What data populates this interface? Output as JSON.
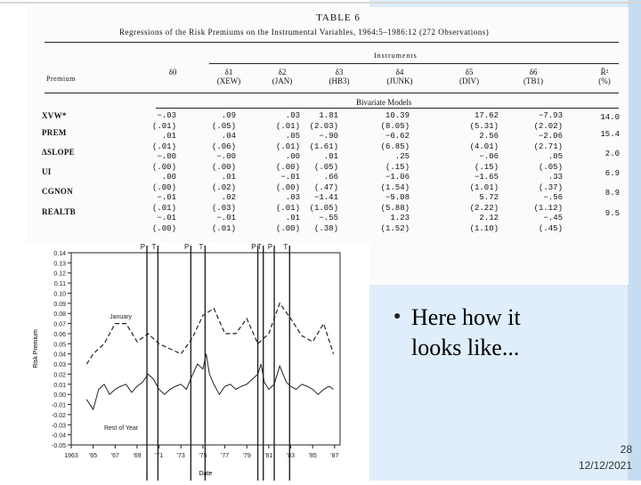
{
  "slide": {
    "bullet_text_line1": "Here how it",
    "bullet_text_line2": "looks like...",
    "bullet_icon": "filled-circle",
    "page_number": "28",
    "date": "12/12/2021"
  },
  "table": {
    "title": "TABLE 6",
    "subtitle": "Regressions of the Risk Premiums on the Instrumental Variables, 1964:5–1986:12 (272 Observations)",
    "group_header": "Instruments",
    "premium_header": "Premium",
    "section_header": "Bivariate Models",
    "columns": [
      {
        "symbol": "δ0",
        "name": ""
      },
      {
        "symbol": "δ1",
        "name": "(XEW)"
      },
      {
        "symbol": "δ2",
        "name": "(JAN)"
      },
      {
        "symbol": "δ3",
        "name": "(HB3)"
      },
      {
        "symbol": "δ4",
        "name": "(JUNK)"
      },
      {
        "symbol": "δ5",
        "name": "(DIV)"
      },
      {
        "symbol": "δ6",
        "name": "(TB1)"
      },
      {
        "symbol": "R̄²",
        "name": "(%)"
      }
    ],
    "row_labels": [
      "XVW*",
      "PREM",
      "ΔSLOPE",
      "UI",
      "CGNON",
      "REALTB"
    ],
    "col_values": [
      [
        "−.03",
        "(.01)",
        ".01",
        "(.01)",
        "−.00",
        "(.00)",
        ".00",
        "(.00)",
        "−.01",
        "(.01)",
        "−.01",
        "(.00)"
      ],
      [
        ".09",
        "(.05)",
        ".04",
        "(.06)",
        "−.00",
        "(.00)",
        ".01",
        "(.02)",
        ".02",
        "(.03)",
        "−.01",
        "(.01)"
      ],
      [
        ".03",
        "(.01)",
        ".05",
        "(.01)",
        ".00",
        "(.00)",
        "−.01",
        "(.00)",
        ".03",
        "(.01)",
        ".01",
        "(.00)"
      ],
      [
        "1.81",
        "(2.03)",
        "−.90",
        "(1.61)",
        ".01",
        "(.05)",
        ".66",
        "(.47)",
        "−1.41",
        "(1.05)",
        "−.55",
        "(.38)"
      ],
      [
        "10.39",
        "(8.05)",
        "−6.62",
        "(6.85)",
        ".25",
        "(.15)",
        "−1.06",
        "(1.54)",
        "−5.08",
        "(5.88)",
        "1.23",
        "(1.52)"
      ],
      [
        "17.62",
        "(5.31)",
        "2.56",
        "(4.01)",
        "−.06",
        "(.15)",
        "−1.65",
        "(1.01)",
        "5.72",
        "(2.22)",
        "2.12",
        "(1.10)"
      ],
      [
        "−7.93",
        "(2.02)",
        "−2.06",
        "(2.71)",
        ".05",
        "(.05)",
        ".33",
        "(.37)",
        "−.56",
        "(1.12)",
        "−.45",
        "(.45)"
      ],
      [
        "14.0",
        "15.4",
        "2.0",
        "6.9",
        "8.9",
        "9.5"
      ]
    ]
  },
  "chart_data": {
    "type": "line",
    "title": "",
    "ylabel": "Risk Premium",
    "xlabel": "Date",
    "ylim": [
      -0.05,
      0.14
    ],
    "xlim": [
      1963,
      1987.5
    ],
    "y_ticks": [
      "0.14",
      "0.13",
      "0.12",
      "0.11",
      "0.10",
      "0.09",
      "0.08",
      "0.07",
      "0.06",
      "0.05",
      "0.04",
      "0.03",
      "0.02",
      "0.01",
      "0.00",
      "-0.01",
      "-0.02",
      "-0.03",
      "-0.04",
      "-0.05"
    ],
    "x_ticks": [
      {
        "label": "1963",
        "x": 1963
      },
      {
        "label": "'65",
        "x": 1965
      },
      {
        "label": "'67",
        "x": 1967
      },
      {
        "label": "'69",
        "x": 1969
      },
      {
        "label": "'71",
        "x": 1971
      },
      {
        "label": "'73",
        "x": 1973
      },
      {
        "label": "'75",
        "x": 1975
      },
      {
        "label": "'77",
        "x": 1977
      },
      {
        "label": "'79",
        "x": 1979
      },
      {
        "label": "'81",
        "x": 1981
      },
      {
        "label": "'83",
        "x": 1983
      },
      {
        "label": "'85",
        "x": 1985
      },
      {
        "label": "'87",
        "x": 1987
      }
    ],
    "cycle_markers": [
      {
        "label": "P",
        "x": 1969.9
      },
      {
        "label": "T",
        "x": 1970.9
      },
      {
        "label": "P",
        "x": 1973.9
      },
      {
        "label": "T",
        "x": 1975.2
      },
      {
        "label": "P",
        "x": 1980.0
      },
      {
        "label": "T",
        "x": 1980.5
      },
      {
        "label": "P",
        "x": 1981.5
      },
      {
        "label": "T",
        "x": 1982.9
      }
    ],
    "annotations": [
      {
        "text": "January",
        "x": 1966.5,
        "y": 0.075
      },
      {
        "text": "Rest of Year",
        "x": 1966.0,
        "y": -0.035
      }
    ],
    "series": [
      {
        "name": "January",
        "style": "dashed",
        "x": [
          1964.4,
          1965.0,
          1966.0,
          1967.0,
          1968.0,
          1969.0,
          1970.0,
          1971.0,
          1972.0,
          1973.0,
          1974.0,
          1975.0,
          1976.0,
          1977.0,
          1978.0,
          1979.0,
          1980.0,
          1981.0,
          1982.0,
          1983.0,
          1984.0,
          1985.0,
          1986.0,
          1986.9
        ],
        "y": [
          0.03,
          0.04,
          0.05,
          0.07,
          0.07,
          0.052,
          0.06,
          0.05,
          0.045,
          0.04,
          0.055,
          0.078,
          0.085,
          0.06,
          0.06,
          0.075,
          0.05,
          0.06,
          0.09,
          0.075,
          0.058,
          0.052,
          0.07,
          0.04
        ]
      },
      {
        "name": "Rest of Year",
        "style": "solid",
        "x": [
          1964.4,
          1965.0,
          1965.5,
          1966.0,
          1966.5,
          1967.0,
          1967.5,
          1968.0,
          1968.5,
          1969.0,
          1969.5,
          1970.0,
          1970.5,
          1971.0,
          1971.5,
          1972.0,
          1972.5,
          1973.0,
          1973.5,
          1974.0,
          1974.5,
          1975.0,
          1975.3,
          1975.6,
          1976.0,
          1976.5,
          1977.0,
          1977.5,
          1978.0,
          1978.5,
          1979.0,
          1979.5,
          1980.0,
          1980.3,
          1980.6,
          1981.0,
          1981.5,
          1982.0,
          1982.3,
          1982.6,
          1983.0,
          1983.5,
          1984.0,
          1984.5,
          1985.0,
          1985.5,
          1986.0,
          1986.5,
          1986.9
        ],
        "y": [
          -0.005,
          -0.015,
          0.005,
          0.01,
          0.0,
          0.005,
          0.008,
          0.01,
          0.002,
          0.008,
          0.012,
          0.02,
          0.015,
          0.005,
          0.0,
          0.005,
          0.008,
          0.01,
          0.005,
          0.018,
          0.03,
          0.025,
          0.04,
          0.02,
          0.01,
          0.0,
          0.008,
          0.01,
          0.005,
          0.008,
          0.01,
          0.015,
          0.02,
          0.03,
          0.012,
          0.005,
          0.01,
          0.028,
          0.02,
          0.012,
          0.008,
          0.005,
          0.01,
          0.008,
          0.005,
          0.0,
          0.005,
          0.008,
          0.005
        ]
      }
    ]
  }
}
